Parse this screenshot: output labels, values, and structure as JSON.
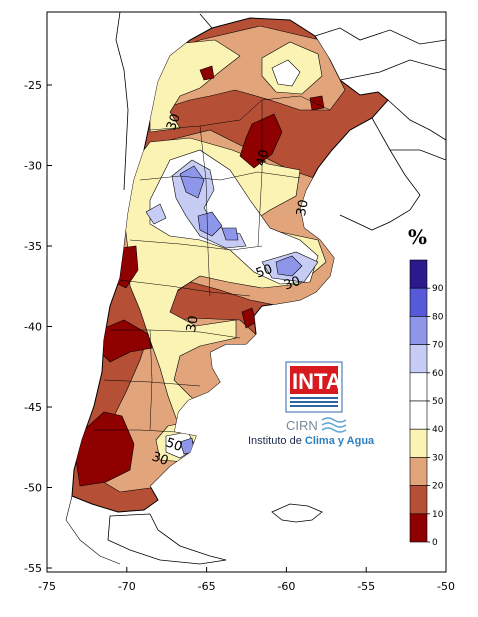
{
  "map": {
    "unit": "%",
    "x_ticks": [
      "-75",
      "-70",
      "-65",
      "-60",
      "-55",
      "-50"
    ],
    "y_ticks": [
      "-25",
      "-30",
      "-35",
      "-40",
      "-45",
      "-50",
      "-55"
    ],
    "contour_labels": [
      "30",
      "40",
      "30",
      "50",
      "30",
      "30",
      "50",
      "30"
    ],
    "colorbar": {
      "labels": [
        "90",
        "80",
        "70",
        "60",
        "50",
        "40",
        "30",
        "20",
        "10",
        "0"
      ],
      "colors": [
        "#2a1a8c",
        "#5659d8",
        "#8e96ea",
        "#c7ccf4",
        "#ffffff",
        "#ffffff",
        "#fbf3b4",
        "#e2a47a",
        "#b55037",
        "#8f0000"
      ]
    }
  },
  "logo": {
    "inta": "INTA",
    "cirn": "CIRN",
    "institute_prefix": "Instituto de ",
    "institute_highlight": "Clima y Agua"
  }
}
